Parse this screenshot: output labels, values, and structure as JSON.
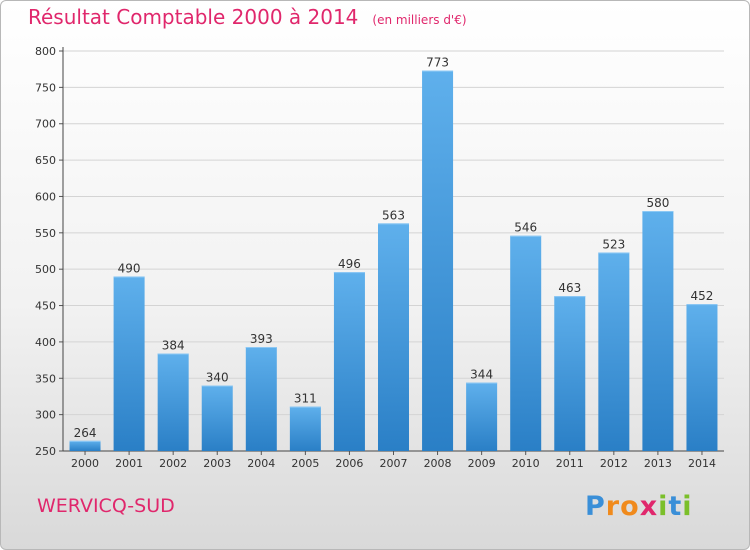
{
  "title": "Résultat Comptable 2000 à 2014",
  "subtitle": "(en milliers d'€)",
  "location": "WERVICQ-SUD",
  "logo": {
    "letters": [
      {
        "ch": "P",
        "color": "#3a8fd8"
      },
      {
        "ch": "r",
        "color": "#f08a1c"
      },
      {
        "ch": "o",
        "color": "#f08a1c"
      },
      {
        "ch": "x",
        "color": "#e0276c"
      },
      {
        "ch": "i",
        "color": "#7bbf2a"
      },
      {
        "ch": "t",
        "color": "#3a8fd8"
      },
      {
        "ch": "i",
        "color": "#7bbf2a"
      }
    ]
  },
  "colors": {
    "bar_top": "#5fb0ec",
    "bar_bottom": "#2a7fc6",
    "title": "#e0276c"
  },
  "chart_data": {
    "type": "bar",
    "categories": [
      "2000",
      "2001",
      "2002",
      "2003",
      "2004",
      "2005",
      "2006",
      "2007",
      "2008",
      "2009",
      "2010",
      "2011",
      "2012",
      "2013",
      "2014"
    ],
    "values": [
      264,
      490,
      384,
      340,
      393,
      311,
      496,
      563,
      773,
      344,
      546,
      463,
      523,
      580,
      452
    ],
    "ylim": [
      250,
      800
    ],
    "yticks": [
      250,
      300,
      350,
      400,
      450,
      500,
      550,
      600,
      650,
      700,
      750,
      800
    ],
    "grid": true,
    "xlabel": "",
    "ylabel": ""
  }
}
